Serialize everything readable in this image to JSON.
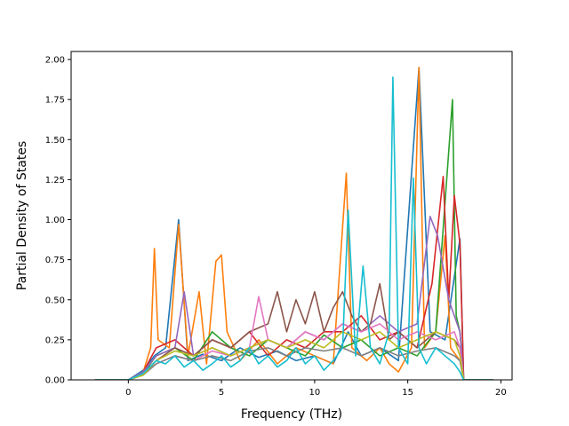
{
  "chart_data": {
    "type": "line",
    "title": "",
    "xlabel": "Frequency (THz)",
    "ylabel": "Partial Density of States",
    "xlim": [
      -3.07,
      20.6
    ],
    "ylim": [
      0.0,
      2.05
    ],
    "xticks": [
      0,
      5,
      10,
      15,
      20
    ],
    "xtick_labels": [
      "0",
      "5",
      "10",
      "15",
      "20"
    ],
    "yticks": [
      0.0,
      0.25,
      0.5,
      0.75,
      1.0,
      1.25,
      1.5,
      1.75,
      2.0
    ],
    "ytick_labels": [
      "0.00",
      "0.25",
      "0.50",
      "0.75",
      "1.00",
      "1.25",
      "1.50",
      "1.75",
      "2.00"
    ],
    "grid": false,
    "legend": "none",
    "series": [
      {
        "color": "#1f77b4",
        "x": [
          -1.8,
          0.0,
          0.8,
          1.4,
          2.0,
          2.7,
          3.2,
          4.0,
          5.0,
          6.0,
          7.0,
          8.0,
          9.0,
          10.0,
          11.0,
          11.8,
          12.5,
          13.5,
          14.5,
          15.6,
          16.2,
          17.0,
          17.8,
          18.0,
          19.6
        ],
        "y": [
          0.0,
          0.0,
          0.06,
          0.15,
          0.2,
          1.0,
          0.12,
          0.16,
          0.12,
          0.2,
          0.14,
          0.18,
          0.12,
          0.15,
          0.1,
          0.3,
          0.15,
          0.2,
          0.12,
          1.95,
          0.3,
          0.25,
          0.88,
          0.0,
          0.0
        ]
      },
      {
        "color": "#ff7f0e",
        "x": [
          -1.8,
          0.0,
          0.8,
          1.2,
          1.4,
          1.6,
          2.2,
          2.7,
          3.2,
          3.8,
          4.2,
          4.7,
          5.0,
          5.3,
          6.0,
          7.0,
          8.0,
          9.0,
          10.0,
          11.0,
          11.7,
          12.0,
          12.8,
          13.5,
          14.0,
          14.5,
          15.2,
          15.6,
          15.9,
          16.5,
          17.0,
          17.3,
          17.8,
          18.0,
          19.6
        ],
        "y": [
          0.0,
          0.0,
          0.05,
          0.2,
          0.82,
          0.25,
          0.2,
          0.97,
          0.15,
          0.55,
          0.1,
          0.74,
          0.78,
          0.3,
          0.12,
          0.25,
          0.1,
          0.2,
          0.15,
          0.1,
          1.29,
          0.2,
          0.12,
          0.2,
          0.1,
          0.05,
          0.2,
          1.95,
          0.2,
          0.3,
          0.9,
          0.2,
          0.12,
          0.0,
          0.0
        ]
      },
      {
        "color": "#2ca02c",
        "x": [
          -1.8,
          0.0,
          0.8,
          1.5,
          2.5,
          3.5,
          4.5,
          5.5,
          6.5,
          7.5,
          8.5,
          9.5,
          10.5,
          11.5,
          12.5,
          13.5,
          14.5,
          15.5,
          16.5,
          17.4,
          17.6,
          17.8,
          18.0,
          19.6
        ],
        "y": [
          0.0,
          0.0,
          0.04,
          0.15,
          0.2,
          0.12,
          0.3,
          0.2,
          0.15,
          0.25,
          0.2,
          0.15,
          0.28,
          0.2,
          0.25,
          0.15,
          0.2,
          0.15,
          0.3,
          1.75,
          0.4,
          0.3,
          0.0,
          0.0
        ]
      },
      {
        "color": "#d62728",
        "x": [
          -1.8,
          0.0,
          0.8,
          1.5,
          2.5,
          3.5,
          4.5,
          5.5,
          6.5,
          7.5,
          8.5,
          9.5,
          10.5,
          11.5,
          12.5,
          13.5,
          14.5,
          15.5,
          16.3,
          16.9,
          17.2,
          17.5,
          17.8,
          18.0,
          19.6
        ],
        "y": [
          0.0,
          0.0,
          0.05,
          0.2,
          0.25,
          0.15,
          0.25,
          0.2,
          0.3,
          0.15,
          0.25,
          0.2,
          0.3,
          0.3,
          0.4,
          0.25,
          0.3,
          0.2,
          0.6,
          1.27,
          0.5,
          1.15,
          0.85,
          0.0,
          0.0
        ]
      },
      {
        "color": "#9467bd",
        "x": [
          -1.8,
          0.0,
          0.8,
          1.5,
          2.5,
          3.0,
          3.5,
          4.5,
          5.5,
          6.5,
          7.5,
          8.5,
          9.5,
          10.5,
          11.5,
          12.5,
          13.5,
          14.5,
          15.5,
          16.2,
          16.6,
          17.2,
          17.8,
          18.0,
          19.6
        ],
        "y": [
          0.0,
          0.0,
          0.05,
          0.15,
          0.2,
          0.55,
          0.15,
          0.2,
          0.15,
          0.2,
          0.25,
          0.2,
          0.3,
          0.25,
          0.35,
          0.3,
          0.4,
          0.3,
          0.35,
          1.02,
          0.9,
          0.5,
          0.3,
          0.0,
          0.0
        ]
      },
      {
        "color": "#8c564b",
        "x": [
          -1.8,
          0.0,
          0.8,
          1.5,
          2.5,
          3.5,
          4.5,
          5.5,
          6.5,
          7.5,
          8.0,
          8.5,
          9.0,
          9.5,
          10.0,
          10.5,
          11.0,
          11.5,
          12.0,
          12.5,
          13.0,
          13.5,
          14.0,
          14.5,
          15.5,
          16.5,
          17.5,
          17.8,
          18.0,
          19.6
        ],
        "y": [
          0.0,
          0.0,
          0.04,
          0.12,
          0.2,
          0.15,
          0.25,
          0.2,
          0.3,
          0.35,
          0.55,
          0.3,
          0.5,
          0.35,
          0.55,
          0.3,
          0.45,
          0.55,
          0.4,
          0.3,
          0.35,
          0.6,
          0.25,
          0.3,
          0.2,
          0.3,
          0.25,
          0.2,
          0.0,
          0.0
        ]
      },
      {
        "color": "#e377c2",
        "x": [
          -1.8,
          0.0,
          0.8,
          1.5,
          2.5,
          3.5,
          4.5,
          5.5,
          6.5,
          7.0,
          7.5,
          8.5,
          9.5,
          10.5,
          11.5,
          12.5,
          13.5,
          14.5,
          15.5,
          16.5,
          17.5,
          17.8,
          18.0,
          19.6
        ],
        "y": [
          0.0,
          0.0,
          0.04,
          0.1,
          0.15,
          0.12,
          0.18,
          0.15,
          0.2,
          0.52,
          0.25,
          0.2,
          0.3,
          0.25,
          0.35,
          0.3,
          0.35,
          0.25,
          0.3,
          0.25,
          0.3,
          0.2,
          0.0,
          0.0
        ]
      },
      {
        "color": "#7f7f7f",
        "x": [
          -1.8,
          0.0,
          0.8,
          1.5,
          2.5,
          3.5,
          4.5,
          5.5,
          6.5,
          7.5,
          8.5,
          9.5,
          10.5,
          11.5,
          12.5,
          13.5,
          14.5,
          15.5,
          16.5,
          17.5,
          17.8,
          18.0,
          19.6
        ],
        "y": [
          0.0,
          0.0,
          0.03,
          0.1,
          0.15,
          0.12,
          0.15,
          0.12,
          0.18,
          0.2,
          0.15,
          0.2,
          0.18,
          0.2,
          0.15,
          0.2,
          0.15,
          0.18,
          0.2,
          0.15,
          0.12,
          0.0,
          0.0
        ]
      },
      {
        "color": "#bcbd22",
        "x": [
          -1.8,
          0.0,
          0.8,
          1.5,
          2.5,
          3.5,
          4.5,
          5.5,
          6.5,
          7.5,
          8.5,
          9.5,
          10.5,
          11.5,
          12.5,
          13.5,
          14.5,
          15.5,
          16.5,
          17.5,
          17.8,
          18.0,
          19.6
        ],
        "y": [
          0.0,
          0.0,
          0.03,
          0.12,
          0.18,
          0.15,
          0.2,
          0.15,
          0.2,
          0.25,
          0.2,
          0.25,
          0.2,
          0.3,
          0.25,
          0.3,
          0.2,
          0.25,
          0.3,
          0.25,
          0.15,
          0.0,
          0.0
        ]
      },
      {
        "color": "#17becf",
        "x": [
          -1.8,
          0.0,
          0.8,
          1.5,
          2.0,
          2.5,
          3.0,
          3.5,
          4.0,
          4.5,
          5.0,
          5.5,
          6.0,
          6.5,
          7.0,
          7.5,
          8.0,
          8.5,
          9.0,
          9.5,
          10.0,
          10.5,
          11.0,
          11.5,
          11.8,
          12.2,
          12.6,
          13.0,
          13.5,
          14.0,
          14.2,
          14.5,
          15.0,
          15.3,
          15.6,
          16.0,
          16.5,
          17.0,
          17.5,
          17.8,
          18.0,
          19.6
        ],
        "y": [
          0.0,
          0.0,
          0.04,
          0.12,
          0.1,
          0.15,
          0.08,
          0.12,
          0.06,
          0.1,
          0.15,
          0.08,
          0.12,
          0.2,
          0.1,
          0.15,
          0.08,
          0.12,
          0.2,
          0.1,
          0.15,
          0.06,
          0.12,
          0.2,
          1.06,
          0.15,
          0.71,
          0.2,
          0.1,
          0.3,
          1.89,
          0.2,
          0.1,
          1.26,
          0.2,
          0.1,
          0.2,
          0.15,
          0.1,
          0.05,
          0.0,
          0.0
        ]
      }
    ]
  }
}
